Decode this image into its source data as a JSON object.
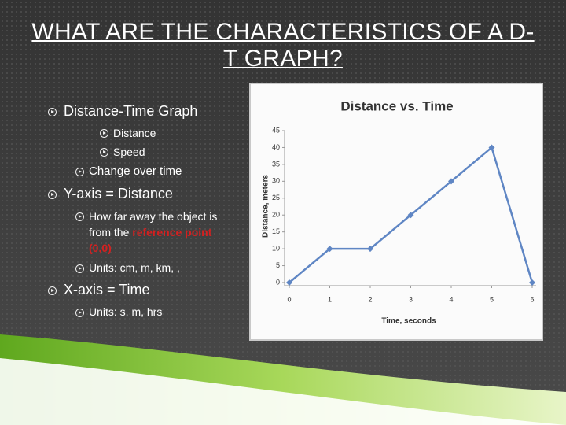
{
  "title": "WHAT ARE THE CHARACTERISTICS OF A D-T GRAPH?",
  "bullets": [
    {
      "text": "Distance-Time Graph",
      "items": [
        "Distance",
        "Speed",
        "Change over time"
      ]
    },
    {
      "text": "Y-axis = Distance",
      "items": [
        {
          "text": "How far away the object is from the ",
          "highlight": "reference point (0,0)"
        },
        "Units: cm, m, km, ,"
      ]
    },
    {
      "text": "X-axis = Time",
      "items": [
        "Units: s, m, hrs"
      ]
    }
  ],
  "chart_data": {
    "type": "line",
    "title": "Distance vs. Time",
    "x": [
      0,
      1,
      2,
      3,
      4,
      5,
      6
    ],
    "values": [
      0,
      10,
      10,
      20,
      30,
      40,
      0
    ],
    "color": "#5f86c4",
    "xlim": [
      0,
      6
    ],
    "xticks": [
      0,
      1,
      2,
      3,
      4,
      5,
      6
    ],
    "ylim": [
      0,
      45
    ],
    "yticks": [
      0,
      5,
      10,
      15,
      20,
      25,
      30,
      35,
      40,
      45
    ],
    "xlabel": "Time, seconds",
    "ylabel": "Distance, meters"
  }
}
